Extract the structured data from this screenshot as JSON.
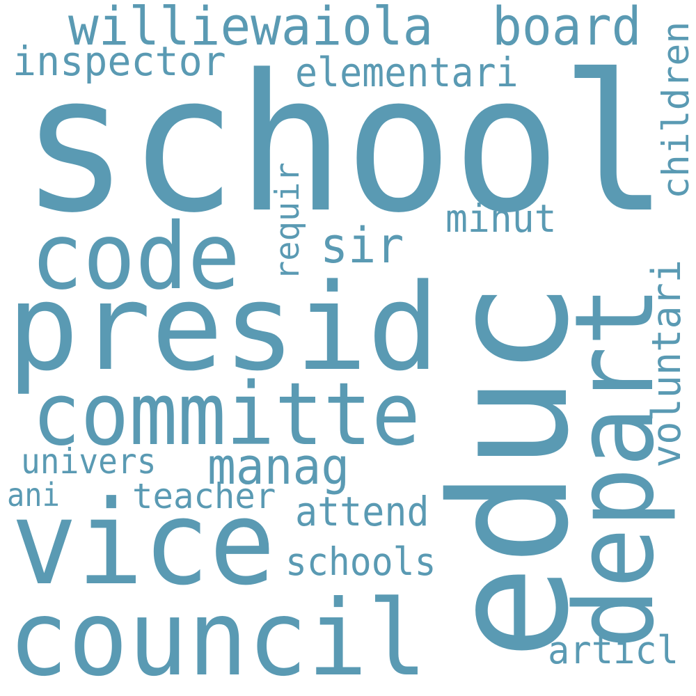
{
  "word_color": "#5a9ab3",
  "background_color": "#ffffff",
  "words": {
    "school": "school",
    "educ": "educ",
    "presid": "presid",
    "depart": "depart",
    "vice": "vice",
    "council": "council",
    "code": "code",
    "committe": "committe",
    "williewaiola": "williewaiola",
    "board": "board",
    "inspector": "inspector",
    "elementari": "elementari",
    "children": "children",
    "requir": "requir",
    "sir": "sir",
    "minut": "minut",
    "voluntari": "voluntari",
    "univers": "univers",
    "manag": "manag",
    "ani": "ani",
    "teacher": "teacher",
    "attend": "attend",
    "schools": "schools",
    "articl": "articl"
  }
}
